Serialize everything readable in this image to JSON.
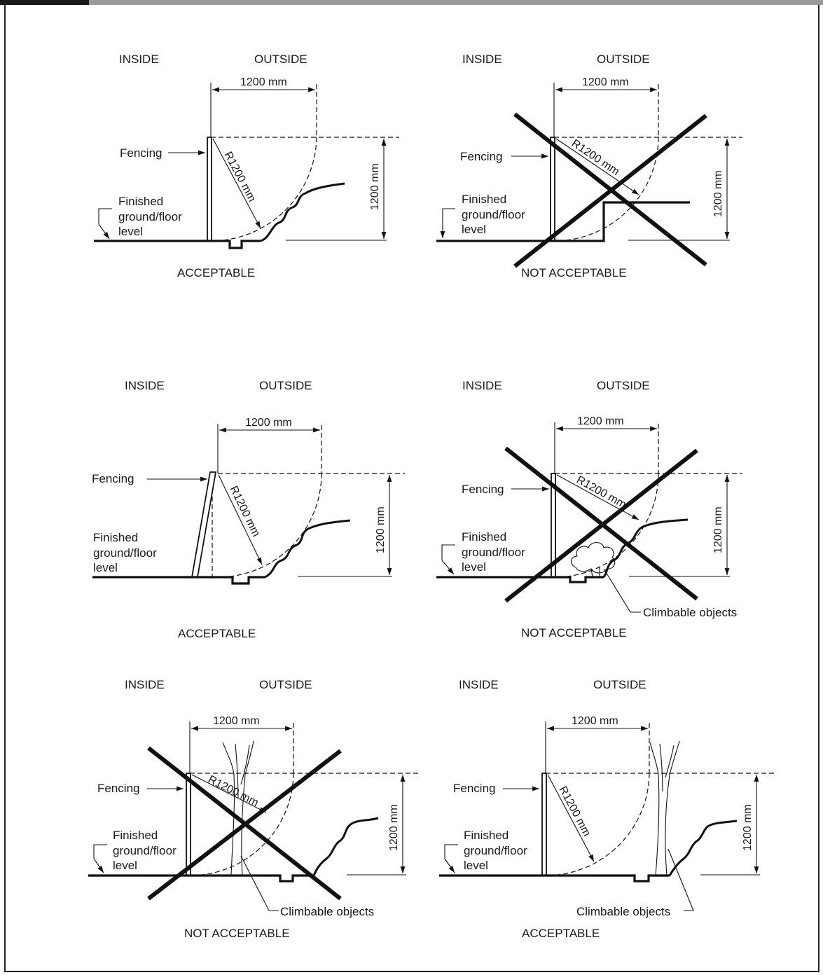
{
  "panels": [
    {
      "inside": "INSIDE",
      "outside": "OUTSIDE",
      "width_dim": "1200 mm",
      "height_dim": "1200 mm",
      "radius": "R1200 mm",
      "fencing": "Fencing",
      "ground": [
        "Finished",
        "ground/floor",
        "level"
      ],
      "verdict": "ACCEPTABLE"
    },
    {
      "inside": "INSIDE",
      "outside": "OUTSIDE",
      "width_dim": "1200 mm",
      "height_dim": "1200 mm",
      "radius": "R1200 mm",
      "fencing": "Fencing",
      "ground": [
        "Finished",
        "ground/floor",
        "level"
      ],
      "verdict": "NOT ACCEPTABLE"
    },
    {
      "inside": "INSIDE",
      "outside": "OUTSIDE",
      "width_dim": "1200 mm",
      "height_dim": "1200 mm",
      "radius": "R1200 mm",
      "fencing": "Fencing",
      "ground": [
        "Finished",
        "ground/floor",
        "level"
      ],
      "verdict": "ACCEPTABLE"
    },
    {
      "inside": "INSIDE",
      "outside": "OUTSIDE",
      "width_dim": "1200 mm",
      "height_dim": "1200 mm",
      "radius": "R1200 mm",
      "fencing": "Fencing",
      "ground": [
        "Finished",
        "ground/floor",
        "level"
      ],
      "climbable": "Climbable objects",
      "verdict": "NOT ACCEPTABLE"
    },
    {
      "inside": "INSIDE",
      "outside": "OUTSIDE",
      "width_dim": "1200 mm",
      "height_dim": "1200 mm",
      "radius": "R1200 mm",
      "fencing": "Fencing",
      "ground": [
        "Finished",
        "ground/floor",
        "level"
      ],
      "climbable": "Climbable objects",
      "verdict": "NOT ACCEPTABLE"
    },
    {
      "inside": "INSIDE",
      "outside": "OUTSIDE",
      "width_dim": "1200 mm",
      "height_dim": "1200 mm",
      "radius": "R1200 mm",
      "fencing": "Fencing",
      "ground": [
        "Finished",
        "ground/floor",
        "level"
      ],
      "climbable": "Climbable objects",
      "verdict": "ACCEPTABLE"
    }
  ]
}
